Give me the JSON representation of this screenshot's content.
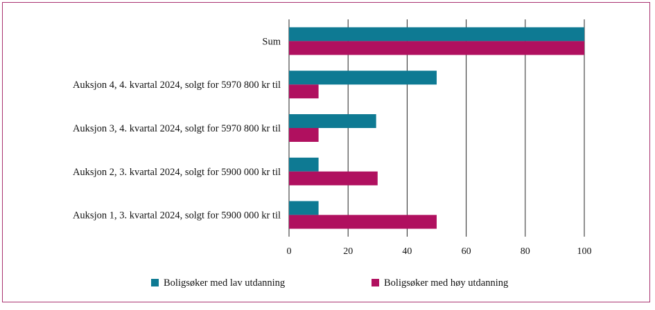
{
  "chart_data": {
    "type": "bar",
    "orientation": "horizontal",
    "categories": [
      "Sum",
      "Auksjon 4, 4. kvartal 2024, solgt for 5970 800 kr til",
      "Auksjon 3, 4. kvartal 2024, solgt for 5970 800 kr til",
      "Auksjon 2, 3. kvartal 2024, solgt for 5900 000 kr til",
      "Auksjon 1, 3. kvartal 2024, solgt for 5900 000 kr til"
    ],
    "series": [
      {
        "name": "Boligsøker med lav utdanning",
        "color": "#0e7a93",
        "values": [
          100,
          50,
          29.5,
          10,
          10
        ]
      },
      {
        "name": "Boligsøker med høy utdanning",
        "color": "#b0105f",
        "values": [
          100,
          10,
          10,
          30,
          50
        ]
      }
    ],
    "xlim": [
      0,
      100
    ],
    "xticks": [
      "0",
      "20",
      "40",
      "60",
      "80",
      "100"
    ],
    "grid": true,
    "legend_position": "bottom"
  }
}
